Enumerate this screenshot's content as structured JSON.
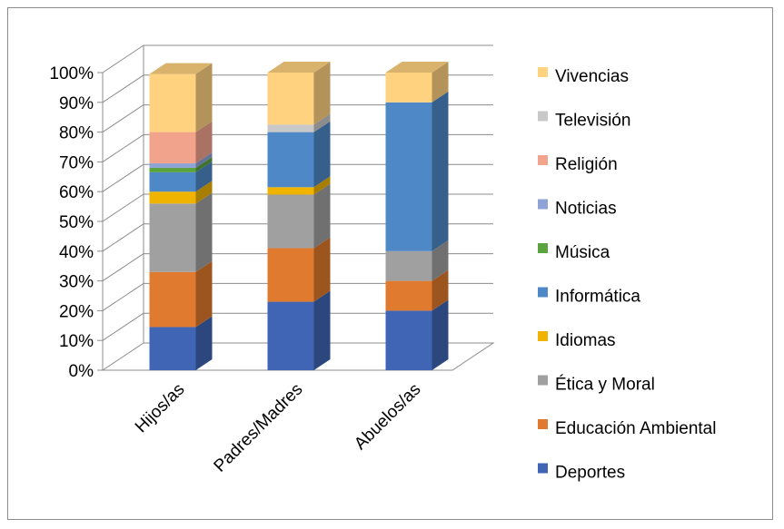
{
  "chart_data": {
    "type": "bar",
    "stacked": true,
    "percent_stacked": true,
    "three_d": true,
    "title": "",
    "xlabel": "",
    "ylabel": "",
    "ylim": [
      0,
      100
    ],
    "y_ticks": [
      "0%",
      "10%",
      "20%",
      "30%",
      "40%",
      "50%",
      "60%",
      "70%",
      "80%",
      "90%",
      "100%"
    ],
    "grid": true,
    "legend_position": "right",
    "categories": [
      "Hijos/as",
      "Padres/Madres",
      "Abuelos/as"
    ],
    "series": [
      {
        "name": "Deportes",
        "color": "#3f65b4",
        "values": [
          14.5,
          23,
          20
        ]
      },
      {
        "name": "Educación Ambiental",
        "color": "#e07a2e",
        "values": [
          18.5,
          18,
          10
        ]
      },
      {
        "name": "Ética y Moral",
        "color": "#a0a0a0",
        "values": [
          23,
          18,
          10
        ]
      },
      {
        "name": "Idiomas",
        "color": "#f0b400",
        "values": [
          4,
          2.5,
          0
        ]
      },
      {
        "name": "Informática",
        "color": "#4f88c6",
        "values": [
          6.5,
          18.5,
          50
        ]
      },
      {
        "name": "Música",
        "color": "#5aa33f",
        "values": [
          1.5,
          0,
          0
        ]
      },
      {
        "name": "Noticias",
        "color": "#8ea4d6",
        "values": [
          1.5,
          0,
          0
        ]
      },
      {
        "name": "Religión",
        "color": "#f2a38c",
        "values": [
          10.5,
          0,
          0
        ]
      },
      {
        "name": "Televisión",
        "color": "#c8c8c8",
        "values": [
          0,
          2.5,
          0
        ]
      },
      {
        "name": "Vivencias",
        "color": "#ffd27f",
        "values": [
          19.5,
          17.5,
          10
        ]
      }
    ]
  }
}
